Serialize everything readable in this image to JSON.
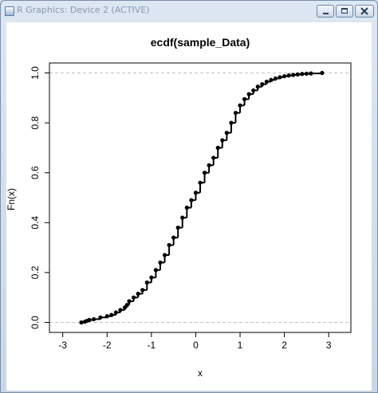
{
  "window": {
    "title": "R Graphics: Device 2 (ACTIVE)",
    "icons": {
      "app": "r-graphics-app-icon",
      "minimize": "minimize-icon",
      "maximize": "maximize-icon",
      "close": "close-icon"
    }
  },
  "chart_data": {
    "type": "scatter",
    "title": "ecdf(sample_Data)",
    "xlabel": "x",
    "ylabel": "Fn(x)",
    "xlim": [
      -3.3,
      3.5
    ],
    "ylim": [
      -0.04,
      1.04
    ],
    "x_ticks": [
      -3,
      -2,
      -1,
      0,
      1,
      2,
      3
    ],
    "x_tick_labels": [
      "-3",
      "-2",
      "-1",
      "0",
      "1",
      "2",
      "3"
    ],
    "y_ticks": [
      0.0,
      0.2,
      0.4,
      0.6,
      0.8,
      1.0
    ],
    "y_tick_labels": [
      "0.0",
      "0.2",
      "0.4",
      "0.6",
      "0.8",
      "1.0"
    ],
    "reference_lines": [
      0,
      1
    ],
    "grid": false,
    "legend": "none",
    "marker": "filled-circle",
    "colors": {
      "points": "#000000",
      "reference_lines": "#bfbfbf",
      "axes": "#000000"
    },
    "series": [
      {
        "x": [
          -2.58,
          -2.5,
          -2.45,
          -2.4,
          -2.3,
          -2.15,
          -2.0,
          -1.9,
          -1.8,
          -1.7,
          -1.6,
          -1.55,
          -1.5,
          -1.4,
          -1.3,
          -1.2,
          -1.1,
          -1.0,
          -0.9,
          -0.8,
          -0.7,
          -0.6,
          -0.5,
          -0.4,
          -0.3,
          -0.2,
          -0.1,
          0.0,
          0.1,
          0.2,
          0.3,
          0.4,
          0.5,
          0.6,
          0.7,
          0.8,
          0.9,
          1.0,
          1.1,
          1.2,
          1.3,
          1.4,
          1.5,
          1.6,
          1.7,
          1.8,
          1.9,
          2.0,
          2.1,
          2.2,
          2.3,
          2.4,
          2.5,
          2.6,
          2.85
        ],
        "y": [
          0.0,
          0.003,
          0.007,
          0.01,
          0.013,
          0.02,
          0.025,
          0.03,
          0.04,
          0.05,
          0.06,
          0.07,
          0.085,
          0.1,
          0.115,
          0.13,
          0.16,
          0.18,
          0.21,
          0.24,
          0.27,
          0.31,
          0.34,
          0.38,
          0.42,
          0.46,
          0.49,
          0.52,
          0.56,
          0.6,
          0.63,
          0.66,
          0.7,
          0.73,
          0.76,
          0.8,
          0.84,
          0.87,
          0.895,
          0.915,
          0.93,
          0.945,
          0.955,
          0.965,
          0.972,
          0.978,
          0.983,
          0.987,
          0.99,
          0.992,
          0.994,
          0.996,
          0.997,
          0.998,
          1.0
        ]
      }
    ]
  }
}
